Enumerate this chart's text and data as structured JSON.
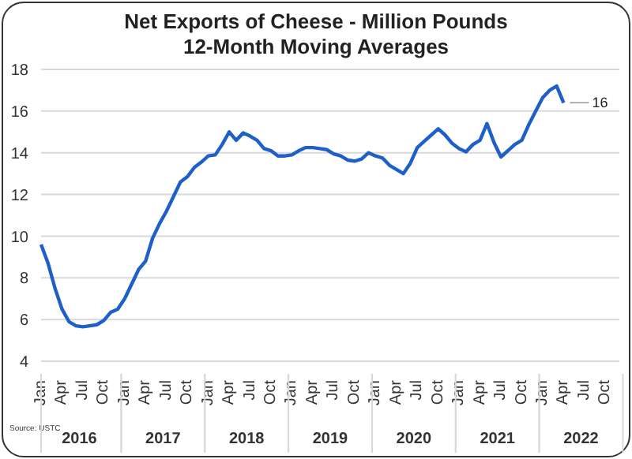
{
  "chart_data": {
    "type": "line",
    "title": "Net Exports of Cheese - Million Pounds",
    "subtitle": "12-Month Moving Averages",
    "categories": [
      "Jan",
      null,
      null,
      "Apr",
      null,
      null,
      "Jul",
      null,
      null,
      "Oct",
      null,
      null,
      "Jan",
      null,
      null,
      "Apr",
      null,
      null,
      "Jul",
      null,
      null,
      "Oct",
      null,
      null,
      "Jan",
      null,
      null,
      "Apr",
      null,
      null,
      "Jul",
      null,
      null,
      "Oct",
      null,
      null,
      "Jan",
      null,
      null,
      "Apr",
      null,
      null,
      "Jul",
      null,
      null,
      "Oct",
      null,
      null,
      "Jan",
      null,
      null,
      "Apr",
      null,
      null,
      "Jul",
      null,
      null,
      "Oct",
      null,
      null,
      "Jan",
      null,
      null,
      "Apr",
      null,
      null,
      "Jul",
      null,
      null,
      "Oct",
      null,
      null,
      "Jan",
      null,
      null,
      "Apr",
      null,
      null,
      "Jul",
      null,
      null,
      "Oct",
      null,
      null
    ],
    "series": [
      {
        "color": "#1f5fc8",
        "values": [
          9.6,
          8.7,
          7.5,
          6.5,
          5.9,
          5.7,
          5.65,
          5.7,
          5.75,
          5.95,
          6.35,
          6.5,
          7.0,
          7.7,
          8.4,
          8.8,
          9.9,
          10.6,
          11.2,
          11.9,
          12.6,
          12.85,
          13.3,
          13.55,
          13.85,
          13.9,
          14.4,
          15.0,
          14.6,
          14.95,
          14.8,
          14.6,
          14.2,
          14.1,
          13.85,
          13.85,
          13.9,
          14.1,
          14.25,
          14.25,
          14.2,
          14.15,
          13.95,
          13.85,
          13.65,
          13.6,
          13.7,
          14.0,
          13.85,
          13.75,
          13.4,
          13.2,
          13.0,
          13.5,
          14.25,
          14.55,
          14.85,
          15.15,
          14.85,
          14.45,
          14.2,
          14.05,
          14.4,
          14.6,
          15.4,
          14.5,
          13.8,
          14.1,
          14.4,
          14.6,
          15.35,
          16.0,
          16.65,
          17.0,
          17.2,
          16.4,
          null,
          null,
          null,
          null,
          null,
          null,
          null,
          null
        ],
        "value_labels": [
          null,
          null,
          null,
          null,
          null,
          null,
          null,
          null,
          null,
          null,
          null,
          null,
          null,
          null,
          null,
          null,
          null,
          null,
          null,
          null,
          null,
          null,
          null,
          null,
          null,
          null,
          null,
          null,
          null,
          null,
          null,
          null,
          null,
          null,
          null,
          null,
          null,
          null,
          null,
          null,
          null,
          null,
          null,
          null,
          null,
          null,
          null,
          null,
          null,
          null,
          null,
          null,
          null,
          null,
          null,
          null,
          null,
          null,
          null,
          null,
          null,
          null,
          null,
          null,
          null,
          null,
          null,
          null,
          null,
          null,
          null,
          null,
          null,
          null,
          null,
          "16",
          null,
          null,
          null,
          null,
          null,
          null,
          null,
          null
        ]
      }
    ],
    "ylim": [
      4,
      18
    ],
    "yticks": [
      4,
      6,
      8,
      10,
      12,
      14,
      16,
      18
    ],
    "grid": "y",
    "legend": false,
    "marker": "none",
    "line_style": "solid",
    "annotations": [
      "2016",
      "2017",
      "2018",
      "2019",
      "2020",
      "2021",
      "2022",
      "Source: USTC"
    ]
  }
}
